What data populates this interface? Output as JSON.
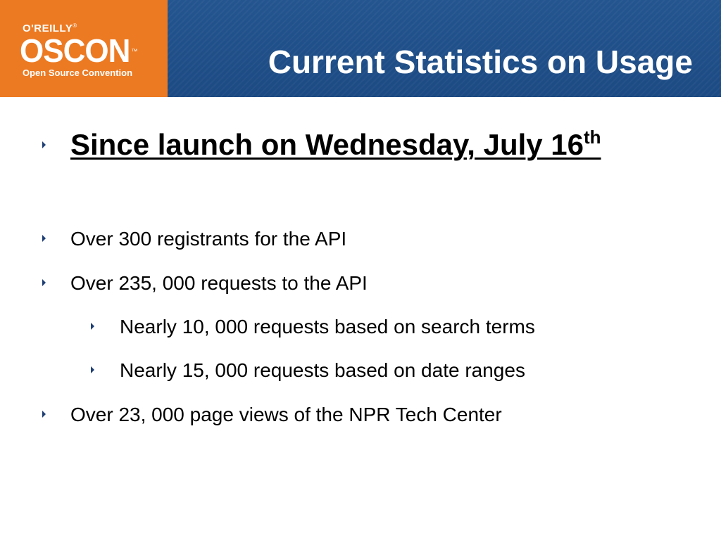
{
  "logo": {
    "publisher": "O'REILLY",
    "tm": "®",
    "name": "OSCON",
    "name_tm": "™",
    "tagline": "Open Source Convention",
    "color": "#ec7a22"
  },
  "header": {
    "title": "Current Statistics on Usage",
    "color": "#1f4e87"
  },
  "headline": {
    "text": "Since launch on Wednesday, July 16",
    "superscript": "th"
  },
  "bullets": [
    {
      "level": 1,
      "text": "Over 300 registrants for the API"
    },
    {
      "level": 1,
      "text": "Over 235, 000 requests to the API"
    },
    {
      "level": 2,
      "text": "Nearly 10, 000 requests based on search terms"
    },
    {
      "level": 2,
      "text": "Nearly 15, 000 requests based on date ranges"
    },
    {
      "level": 1,
      "text": "Over 23, 000 page views of the NPR Tech Center"
    }
  ],
  "bullet_icon": "triangle-right-icon"
}
